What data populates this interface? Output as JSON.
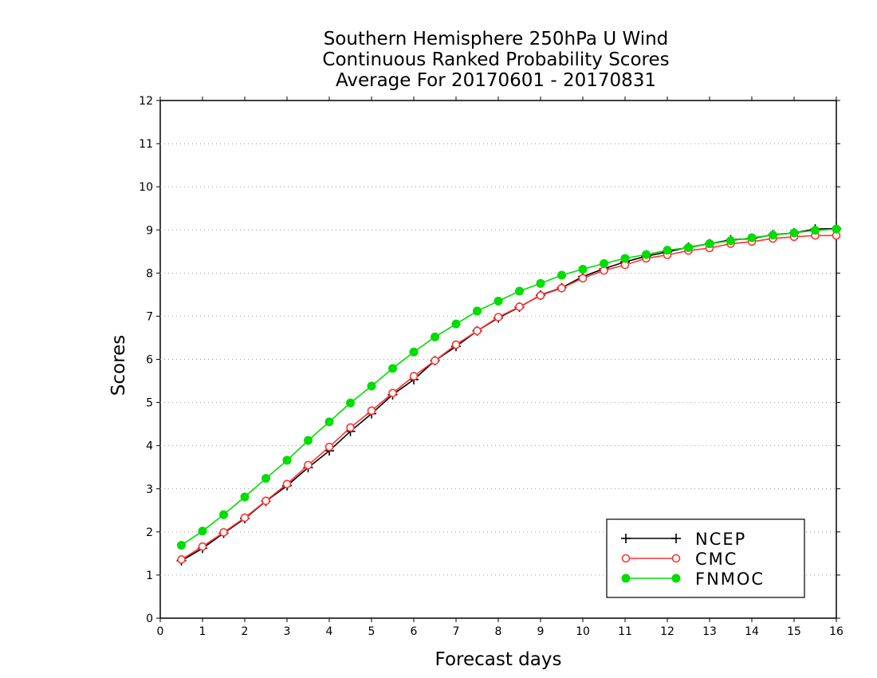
{
  "chart_data": {
    "type": "line",
    "title": [
      "Southern Hemisphere 250hPa U Wind",
      "Continuous Ranked Probability Scores",
      "Average For 20170601 - 20170831"
    ],
    "xlabel": "Forecast days",
    "ylabel": "Scores",
    "xlim": [
      0,
      16
    ],
    "ylim": [
      0,
      12
    ],
    "xticks": [
      "0",
      "1",
      "2",
      "3",
      "4",
      "5",
      "6",
      "7",
      "8",
      "9",
      "10",
      "11",
      "12",
      "13",
      "14",
      "15",
      "16"
    ],
    "yticks": [
      "0",
      "1",
      "2",
      "3",
      "4",
      "5",
      "6",
      "7",
      "8",
      "9",
      "10",
      "11",
      "12"
    ],
    "grid": "horizontal-dotted",
    "legend_position": "bottom-right",
    "x": [
      0.5,
      1,
      1.5,
      2,
      2.5,
      3,
      3.5,
      4,
      4.5,
      5,
      5.5,
      6,
      6.5,
      7,
      7.5,
      8,
      8.5,
      9,
      9.5,
      10,
      10.5,
      11,
      11.5,
      12,
      12.5,
      13,
      13.5,
      14,
      14.5,
      15,
      15.5,
      16
    ],
    "series": [
      {
        "name": "NCEP",
        "marker": "plus",
        "color": "#000000",
        "values": [
          1.33,
          1.62,
          1.97,
          2.31,
          2.71,
          3.07,
          3.49,
          3.88,
          4.33,
          4.74,
          5.18,
          5.53,
          5.97,
          6.3,
          6.66,
          6.96,
          7.21,
          7.49,
          7.66,
          7.92,
          8.1,
          8.26,
          8.39,
          8.49,
          8.6,
          8.68,
          8.77,
          8.8,
          8.89,
          8.93,
          9.02,
          9.03
        ]
      },
      {
        "name": "CMC",
        "marker": "open-circle",
        "color": "#ff3333",
        "values": [
          1.36,
          1.66,
          1.99,
          2.33,
          2.72,
          3.11,
          3.55,
          3.97,
          4.42,
          4.81,
          5.22,
          5.61,
          5.97,
          6.34,
          6.66,
          6.98,
          7.22,
          7.48,
          7.65,
          7.88,
          8.06,
          8.19,
          8.34,
          8.42,
          8.52,
          8.58,
          8.68,
          8.73,
          8.8,
          8.84,
          8.87,
          8.87
        ]
      },
      {
        "name": "FNMOC",
        "marker": "filled-circle",
        "color": "#00dd00",
        "values": [
          1.69,
          2.02,
          2.4,
          2.81,
          3.24,
          3.66,
          4.12,
          4.55,
          4.99,
          5.38,
          5.79,
          6.17,
          6.52,
          6.82,
          7.12,
          7.35,
          7.58,
          7.76,
          7.95,
          8.09,
          8.22,
          8.34,
          8.43,
          8.53,
          8.59,
          8.68,
          8.75,
          8.82,
          8.88,
          8.93,
          8.99,
          9.02
        ]
      }
    ]
  }
}
